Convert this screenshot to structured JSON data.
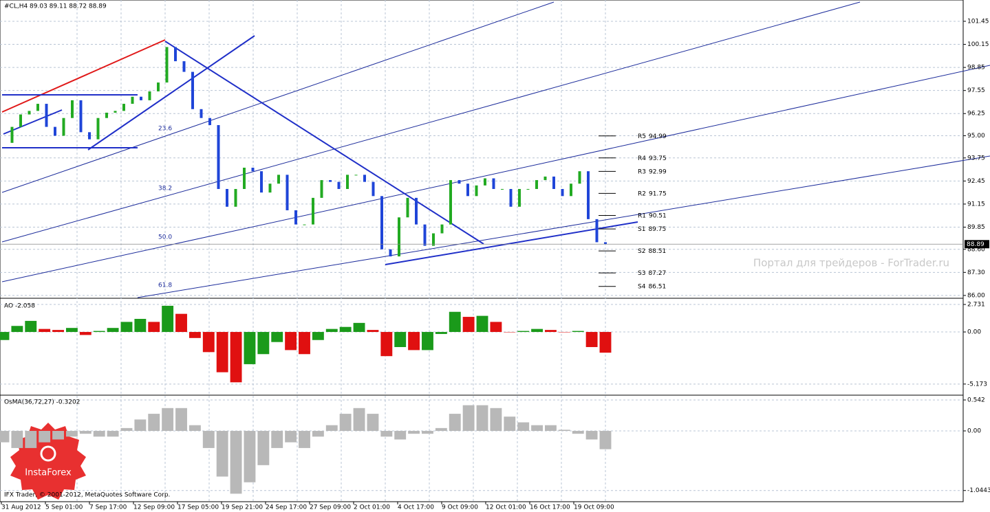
{
  "chart_data": [
    {
      "type": "candlestick",
      "title": "#CL,H4  89.03 89.11 88.72 88.89",
      "close": [
        94.6,
        95.5,
        96.2,
        96.4,
        96.8,
        95.5,
        95.0,
        96.0,
        97.0,
        95.2,
        94.8,
        96.0,
        96.3,
        96.4,
        96.8,
        97.2,
        97.0,
        97.5,
        98.0,
        100.0,
        99.2,
        98.6,
        96.5,
        96.0,
        95.6,
        92.0,
        91.0,
        92.0,
        93.2,
        93.0,
        91.8,
        92.3,
        92.8,
        90.8,
        90.0,
        90.0,
        91.5,
        92.5,
        92.4,
        92.0,
        92.8,
        92.8,
        92.4,
        91.6,
        88.6,
        88.2,
        90.4,
        91.5,
        90.0,
        88.8,
        89.5,
        90.0,
        92.5,
        92.3,
        91.6,
        92.2,
        92.6,
        92.0,
        92.0,
        91.0,
        92.0,
        92.0,
        92.5,
        92.7,
        92.0,
        91.6,
        92.3,
        93.0,
        90.3,
        89.0,
        88.89
      ],
      "up_color": "#22aa22",
      "down_color": "#1f45d8",
      "ylim": [
        85.88,
        102.65
      ],
      "yticks": [
        101.45,
        100.15,
        98.85,
        97.55,
        96.25,
        {
          "value": 95,
          "label": "95.00"
        },
        93.75,
        92.45,
        91.15,
        89.85,
        {
          "value": 88.6,
          "label": "88.60"
        },
        {
          "value": 87.3,
          "label": "87.30"
        },
        {
          "value": 86,
          "label": "86.00"
        }
      ],
      "last_price": 88.89,
      "pivots": [
        {
          "name": "R5",
          "value": 94.99
        },
        {
          "name": "R4",
          "value": 93.75
        },
        {
          "name": "R3",
          "value": 92.99
        },
        {
          "name": "R2",
          "value": 91.75
        },
        {
          "name": "R1",
          "value": 90.51
        },
        {
          "name": "S1",
          "value": 89.75
        },
        {
          "name": "S2",
          "value": 88.51
        },
        {
          "name": "S3",
          "value": 87.27
        },
        {
          "name": "S4",
          "value": 86.51
        }
      ],
      "fib_levels": [
        "23.6",
        "38.2",
        "50.0",
        "61.8"
      ],
      "grid": true
    },
    {
      "type": "bar",
      "title": "AO -2.058",
      "values": [
        -0.8,
        0.6,
        1.1,
        0.3,
        0.2,
        0.4,
        -0.3,
        0.1,
        0.4,
        1.0,
        1.3,
        1.0,
        2.6,
        1.8,
        -0.6,
        -2.0,
        -4.0,
        -5.0,
        -3.2,
        -2.2,
        -1.0,
        -1.8,
        -2.2,
        -0.8,
        0.3,
        0.5,
        0.9,
        0.2,
        -2.4,
        -1.5,
        -1.8,
        -1.8,
        -0.2,
        2.0,
        1.5,
        1.6,
        1.0,
        0.0,
        0.1,
        0.3,
        0.2,
        0.0,
        0.1,
        -1.5,
        -2.058
      ],
      "up_color": "#1a9a1a",
      "down_color": "#e01010",
      "ylim": [
        -6.14,
        3.21
      ],
      "yticks": [
        2.731,
        {
          "value": 0,
          "label": "0.00"
        },
        -5.173
      ],
      "grid": true
    },
    {
      "type": "bar",
      "title": "OsMA(36,72,27) -0.3202",
      "values": [
        -0.2,
        -0.3,
        -0.3,
        -0.2,
        -0.15,
        -0.1,
        -0.05,
        -0.1,
        -0.1,
        0.05,
        0.2,
        0.3,
        0.4,
        0.4,
        0.1,
        -0.3,
        -0.8,
        -1.1,
        -0.9,
        -0.6,
        -0.3,
        -0.2,
        -0.3,
        -0.1,
        0.1,
        0.3,
        0.4,
        0.3,
        -0.1,
        -0.15,
        -0.05,
        -0.05,
        0.05,
        0.3,
        0.45,
        0.45,
        0.4,
        0.25,
        0.15,
        0.1,
        0.1,
        0.02,
        -0.05,
        -0.15,
        -0.3202
      ],
      "color": "#b8b8b8",
      "ylim": [
        -1.24,
        0.614
      ],
      "yticks": [
        0.542,
        {
          "value": 0,
          "label": "0.00"
        },
        -1.0443
      ],
      "grid": true,
      "x_tick_labels": [
        "31 Aug 2012",
        "5 Sep 01:00",
        "7 Sep 17:00",
        "12 Sep 09:00",
        "17 Sep 05:00",
        "19 Sep 21:00",
        "24 Sep 17:00",
        "27 Sep 09:00",
        "2 Oct 01:00",
        "4 Oct 17:00",
        "9 Oct 09:00",
        "12 Oct 01:00",
        "16 Oct 17:00",
        "19 Oct 09:00"
      ]
    }
  ],
  "watermark": "Портал для трейдеров - ForTrader.ru",
  "footer": "IFX Trader, © 2001-2012, MetaQuotes Software Corp.",
  "logo": "InstaForex"
}
